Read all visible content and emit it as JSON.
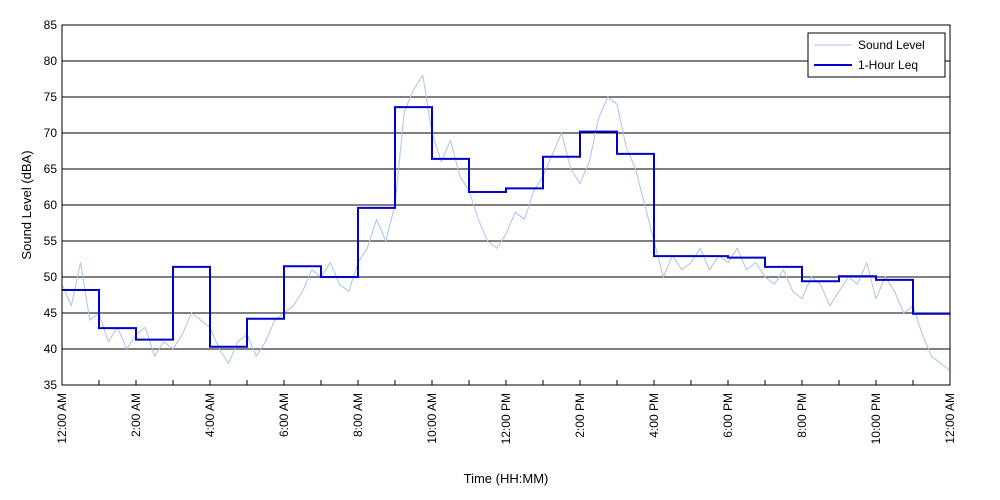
{
  "chart_data": {
    "type": "line",
    "title": "",
    "xlabel": "Time (HH:MM)",
    "ylabel": "Sound Level (dBA)",
    "xlim": [
      0,
      24
    ],
    "ylim": [
      35,
      85
    ],
    "yticks": [
      35,
      40,
      45,
      50,
      55,
      60,
      65,
      70,
      75,
      80,
      85
    ],
    "xticks": [
      {
        "hour": 0,
        "label": "12:00 AM"
      },
      {
        "hour": 2,
        "label": "2:00 AM"
      },
      {
        "hour": 4,
        "label": "4:00 AM"
      },
      {
        "hour": 6,
        "label": "6:00 AM"
      },
      {
        "hour": 8,
        "label": "8:00 AM"
      },
      {
        "hour": 10,
        "label": "10:00 AM"
      },
      {
        "hour": 12,
        "label": "12:00 PM"
      },
      {
        "hour": 14,
        "label": "2:00 PM"
      },
      {
        "hour": 16,
        "label": "4:00 PM"
      },
      {
        "hour": 18,
        "label": "6:00 PM"
      },
      {
        "hour": 20,
        "label": "8:00 PM"
      },
      {
        "hour": 22,
        "label": "10:00 PM"
      },
      {
        "hour": 24,
        "label": "12:00 AM"
      }
    ],
    "grid": {
      "horizontal": true,
      "vertical": false
    },
    "legend": {
      "position": "top-right"
    },
    "series": [
      {
        "name": "Sound Level",
        "color": "#a9c3f2",
        "style": "thin",
        "x": [
          0,
          0.25,
          0.5,
          0.75,
          1,
          1.25,
          1.5,
          1.75,
          2,
          2.25,
          2.5,
          2.75,
          3,
          3.25,
          3.5,
          3.75,
          4,
          4.25,
          4.5,
          4.75,
          5,
          5.25,
          5.5,
          5.75,
          6,
          6.25,
          6.5,
          6.75,
          7,
          7.25,
          7.5,
          7.75,
          8,
          8.25,
          8.5,
          8.75,
          9,
          9.25,
          9.5,
          9.75,
          10,
          10.25,
          10.5,
          10.75,
          11,
          11.25,
          11.5,
          11.75,
          12,
          12.25,
          12.5,
          12.75,
          13,
          13.25,
          13.5,
          13.75,
          14,
          14.25,
          14.5,
          14.75,
          15,
          15.25,
          15.5,
          15.75,
          16,
          16.25,
          16.5,
          16.75,
          17,
          17.25,
          17.5,
          17.75,
          18,
          18.25,
          18.5,
          18.75,
          19,
          19.25,
          19.5,
          19.75,
          20,
          20.25,
          20.5,
          20.75,
          21,
          21.25,
          21.5,
          21.75,
          22,
          22.25,
          22.5,
          22.75,
          23,
          23.25,
          23.5,
          23.75,
          24
        ],
        "y": [
          49,
          46,
          52,
          44,
          45,
          41,
          43,
          40,
          42,
          43,
          39,
          41,
          40,
          42,
          45,
          44,
          43,
          40,
          38,
          41,
          42,
          39,
          41,
          44,
          45,
          46,
          48,
          51,
          50,
          52,
          49,
          48,
          52,
          54,
          58,
          55,
          60,
          73,
          76,
          78,
          70,
          66,
          69,
          64,
          62,
          58,
          55,
          54,
          56,
          59,
          58,
          62,
          64,
          67,
          70,
          65,
          63,
          66,
          72,
          75,
          74,
          68,
          65,
          60,
          55,
          50,
          53,
          51,
          52,
          54,
          51,
          53,
          52,
          54,
          51,
          52,
          50,
          49,
          51,
          48,
          47,
          50,
          49,
          46,
          48,
          50,
          49,
          52,
          47,
          50,
          48,
          45,
          46,
          42,
          39,
          38,
          37
        ]
      },
      {
        "name": "1-Hour Leq",
        "color": "#0000cc",
        "style": "step",
        "hours": [
          0,
          1,
          2,
          3,
          4,
          5,
          6,
          7,
          8,
          9,
          10,
          11,
          12,
          13,
          14,
          15,
          16,
          17,
          18,
          19,
          20,
          21,
          22,
          23
        ],
        "values": [
          48.2,
          42.9,
          41.3,
          51.4,
          40.3,
          44.2,
          51.5,
          50.0,
          59.6,
          73.6,
          66.4,
          61.8,
          62.3,
          66.7,
          70.2,
          67.1,
          52.9,
          52.9,
          52.7,
          51.4,
          49.4,
          50.1,
          49.6,
          44.9
        ]
      }
    ]
  }
}
